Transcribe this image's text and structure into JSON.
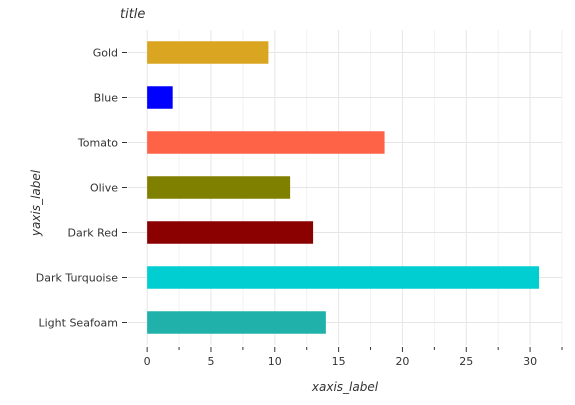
{
  "chart_data": {
    "type": "bar",
    "orientation": "horizontal",
    "title": "title",
    "xlabel": "xaxis_label",
    "ylabel": "yaxis_label",
    "categories": [
      "Light Seafoam",
      "Dark Turquoise",
      "Dark Red",
      "Olive",
      "Tomato",
      "Blue",
      "Gold"
    ],
    "values": [
      14,
      30.7,
      13,
      11.2,
      18.6,
      2,
      9.5
    ],
    "colors": [
      "#20b2aa",
      "#00ced1",
      "#8b0000",
      "#808000",
      "#ff6347",
      "#0000ff",
      "#daa520"
    ],
    "xlim": [
      -1.5,
      32.5
    ],
    "xticks": [
      0,
      5,
      10,
      15,
      20,
      25,
      30
    ],
    "grid": true,
    "legend": "none"
  }
}
